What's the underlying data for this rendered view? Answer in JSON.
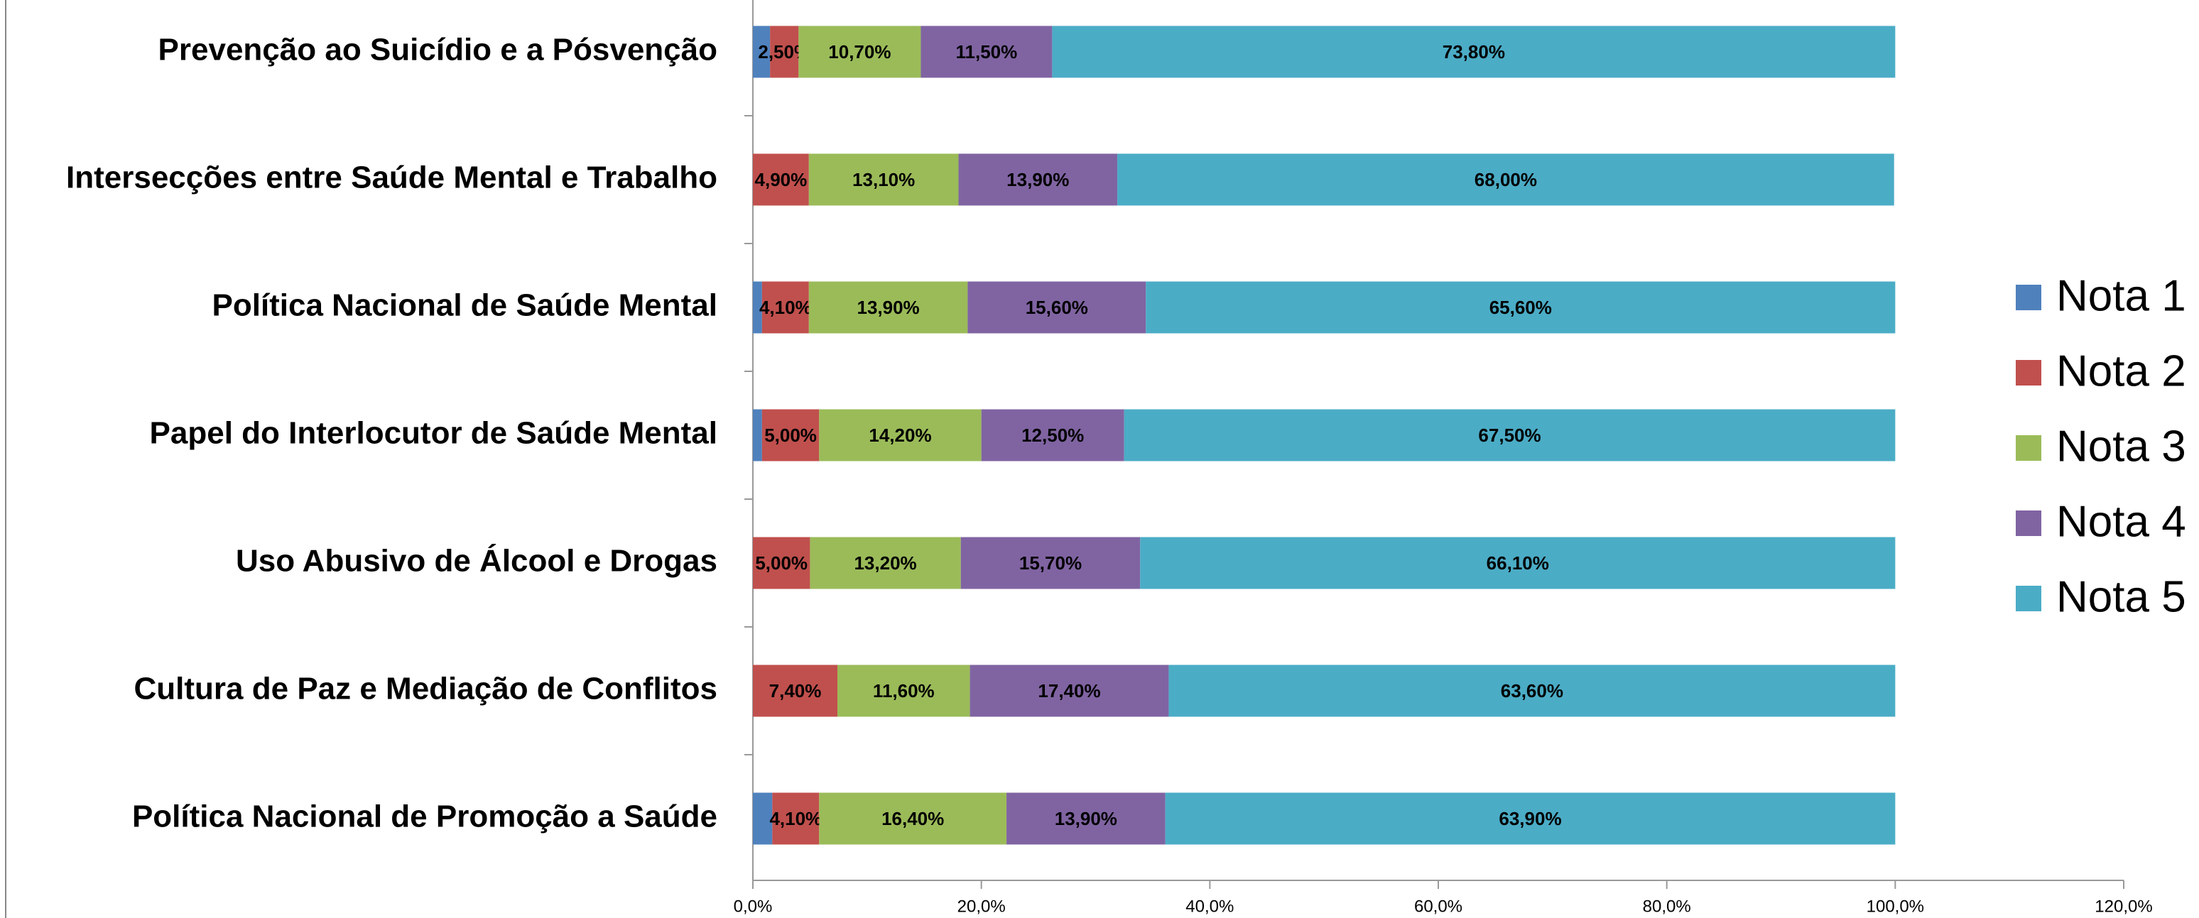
{
  "chart_data": {
    "type": "stacked_barh",
    "categories": [
      "Prevenção ao Suicídio e a Pósvenção",
      "Intersecções entre Saúde Mental e Trabalho",
      "Política Nacional de Saúde Mental",
      "Papel do Interlocutor de Saúde Mental",
      "Uso Abusivo de Álcool e Drogas",
      "Cultura de Paz e Mediação de Conflitos",
      "Política Nacional de Promoção a Saúde"
    ],
    "series": [
      {
        "name": "Nota 1",
        "color": "#4f81bd",
        "values": [
          1.5,
          0,
          0.8,
          0.8,
          0,
          0,
          1.7
        ],
        "value_labels": [
          null,
          null,
          null,
          null,
          null,
          null,
          null
        ]
      },
      {
        "name": "Nota 2",
        "color": "#c0504d",
        "values": [
          2.5,
          4.9,
          4.1,
          5.0,
          5.0,
          7.4,
          4.1
        ],
        "value_labels": [
          "2,50%",
          "4,90%",
          "4,10%",
          "5,00%",
          "5,00%",
          "7,40%",
          "4,10%"
        ]
      },
      {
        "name": "Nota 3",
        "color": "#9bbb59",
        "values": [
          10.7,
          13.1,
          13.9,
          14.2,
          13.2,
          11.6,
          16.4
        ],
        "value_labels": [
          "10,70%",
          "13,10%",
          "13,90%",
          "14,20%",
          "13,20%",
          "11,60%",
          "16,40%"
        ]
      },
      {
        "name": "Nota 4",
        "color": "#8064a2",
        "values": [
          11.5,
          13.9,
          15.6,
          12.5,
          15.7,
          17.4,
          13.9
        ],
        "value_labels": [
          "11,50%",
          "13,90%",
          "15,60%",
          "12,50%",
          "15,70%",
          "17,40%",
          "13,90%"
        ]
      },
      {
        "name": "Nota 5",
        "color": "#4bacc6",
        "values": [
          73.8,
          68.0,
          65.6,
          67.5,
          66.1,
          63.6,
          63.9
        ],
        "value_labels": [
          "73,80%",
          "68,00%",
          "65,60%",
          "67,50%",
          "66,10%",
          "63,60%",
          "63,90%"
        ]
      }
    ],
    "xlim": [
      0,
      120
    ],
    "xticks": [
      {
        "value": 0,
        "label": "0,0%"
      },
      {
        "value": 20,
        "label": "20,0%"
      },
      {
        "value": 40,
        "label": "40,0%"
      },
      {
        "value": 60,
        "label": "60,0%"
      },
      {
        "value": 80,
        "label": "80,0%"
      },
      {
        "value": 100,
        "label": "100,0%"
      },
      {
        "value": 120,
        "label": "120,0%"
      }
    ],
    "legend": "right"
  }
}
